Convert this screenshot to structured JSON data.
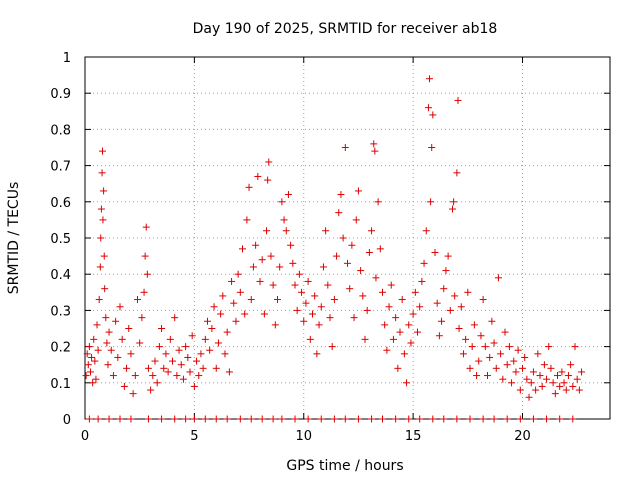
{
  "chart_data": {
    "type": "scatter",
    "title": "Day 190 of 2025, SRMTID for receiver ab18",
    "xlabel": "GPS time / hours",
    "ylabel": "SRMTID / TECUs",
    "xlim": [
      0,
      24
    ],
    "ylim": [
      0,
      1
    ],
    "xticks": [
      0,
      5,
      10,
      15,
      20
    ],
    "xtick_labels": [
      "0",
      "5",
      "10",
      "15",
      "20"
    ],
    "yticks": [
      0,
      0.1,
      0.2,
      0.3,
      0.4,
      0.5,
      0.6,
      0.7,
      0.8,
      0.9,
      1
    ],
    "ytick_labels": [
      "0",
      "0.1",
      "0.2",
      "0.3",
      "0.4",
      "0.5",
      "0.6",
      "0.7",
      "0.8",
      "0.9",
      "1"
    ],
    "grid": true,
    "marker": "+",
    "color": "#dd0000",
    "series": [
      {
        "name": "SRMTID",
        "points": [
          [
            0.05,
            0.12
          ],
          [
            0.1,
            0.18
          ],
          [
            0.15,
            0.15
          ],
          [
            0.2,
            0.2
          ],
          [
            0.25,
            0.13
          ],
          [
            0.3,
            0.17
          ],
          [
            0.35,
            0.1
          ],
          [
            0.4,
            0.22
          ],
          [
            0.45,
            0.16
          ],
          [
            0.5,
            0.11
          ],
          [
            0.55,
            0.26
          ],
          [
            0.6,
            0.19
          ],
          [
            0.65,
            0.33
          ],
          [
            0.7,
            0.42
          ],
          [
            0.72,
            0.5
          ],
          [
            0.75,
            0.58
          ],
          [
            0.78,
            0.68
          ],
          [
            0.8,
            0.74
          ],
          [
            0.82,
            0.55
          ],
          [
            0.85,
            0.63
          ],
          [
            0.88,
            0.45
          ],
          [
            0.9,
            0.36
          ],
          [
            0.95,
            0.28
          ],
          [
            1.0,
            0.21
          ],
          [
            1.05,
            0.15
          ],
          [
            1.1,
            0.24
          ],
          [
            1.2,
            0.19
          ],
          [
            1.3,
            0.12
          ],
          [
            1.4,
            0.27
          ],
          [
            1.5,
            0.17
          ],
          [
            1.6,
            0.31
          ],
          [
            1.7,
            0.22
          ],
          [
            1.8,
            0.09
          ],
          [
            1.9,
            0.14
          ],
          [
            2.0,
            0.25
          ],
          [
            2.1,
            0.18
          ],
          [
            2.2,
            0.07
          ],
          [
            2.3,
            0.12
          ],
          [
            2.4,
            0.33
          ],
          [
            2.5,
            0.21
          ],
          [
            2.6,
            0.28
          ],
          [
            2.7,
            0.35
          ],
          [
            2.75,
            0.45
          ],
          [
            2.8,
            0.53
          ],
          [
            2.85,
            0.4
          ],
          [
            2.9,
            0.14
          ],
          [
            3.0,
            0.08
          ],
          [
            3.1,
            0.12
          ],
          [
            3.2,
            0.16
          ],
          [
            3.3,
            0.1
          ],
          [
            3.4,
            0.2
          ],
          [
            3.5,
            0.25
          ],
          [
            3.6,
            0.14
          ],
          [
            3.7,
            0.18
          ],
          [
            3.8,
            0.13
          ],
          [
            3.9,
            0.22
          ],
          [
            4.0,
            0.16
          ],
          [
            4.1,
            0.28
          ],
          [
            4.2,
            0.12
          ],
          [
            4.3,
            0.19
          ],
          [
            4.4,
            0.15
          ],
          [
            4.5,
            0.11
          ],
          [
            4.6,
            0.2
          ],
          [
            4.7,
            0.17
          ],
          [
            4.8,
            0.13
          ],
          [
            4.9,
            0.23
          ],
          [
            5.0,
            0.09
          ],
          [
            5.1,
            0.16
          ],
          [
            5.2,
            0.12
          ],
          [
            5.3,
            0.18
          ],
          [
            5.4,
            0.14
          ],
          [
            5.5,
            0.22
          ],
          [
            5.6,
            0.27
          ],
          [
            5.7,
            0.19
          ],
          [
            5.8,
            0.25
          ],
          [
            5.9,
            0.31
          ],
          [
            6.0,
            0.14
          ],
          [
            6.1,
            0.21
          ],
          [
            6.2,
            0.29
          ],
          [
            6.3,
            0.34
          ],
          [
            6.4,
            0.18
          ],
          [
            6.5,
            0.24
          ],
          [
            6.6,
            0.13
          ],
          [
            6.7,
            0.38
          ],
          [
            6.8,
            0.32
          ],
          [
            6.9,
            0.27
          ],
          [
            7.0,
            0.4
          ],
          [
            7.1,
            0.35
          ],
          [
            7.2,
            0.47
          ],
          [
            7.3,
            0.29
          ],
          [
            7.4,
            0.55
          ],
          [
            7.5,
            0.64
          ],
          [
            7.6,
            0.33
          ],
          [
            7.7,
            0.42
          ],
          [
            7.8,
            0.48
          ],
          [
            7.9,
            0.67
          ],
          [
            8.0,
            0.38
          ],
          [
            8.1,
            0.44
          ],
          [
            8.2,
            0.29
          ],
          [
            8.3,
            0.52
          ],
          [
            8.35,
            0.66
          ],
          [
            8.4,
            0.71
          ],
          [
            8.5,
            0.45
          ],
          [
            8.6,
            0.37
          ],
          [
            8.7,
            0.26
          ],
          [
            8.8,
            0.33
          ],
          [
            8.9,
            0.42
          ],
          [
            9.0,
            0.6
          ],
          [
            9.1,
            0.55
          ],
          [
            9.2,
            0.52
          ],
          [
            9.3,
            0.62
          ],
          [
            9.4,
            0.48
          ],
          [
            9.5,
            0.43
          ],
          [
            9.6,
            0.37
          ],
          [
            9.7,
            0.3
          ],
          [
            9.8,
            0.4
          ],
          [
            9.9,
            0.35
          ],
          [
            10.0,
            0.27
          ],
          [
            10.1,
            0.32
          ],
          [
            10.2,
            0.38
          ],
          [
            10.3,
            0.22
          ],
          [
            10.4,
            0.29
          ],
          [
            10.5,
            0.34
          ],
          [
            10.6,
            0.18
          ],
          [
            10.7,
            0.26
          ],
          [
            10.8,
            0.31
          ],
          [
            10.9,
            0.42
          ],
          [
            11.0,
            0.52
          ],
          [
            11.1,
            0.37
          ],
          [
            11.2,
            0.28
          ],
          [
            11.3,
            0.2
          ],
          [
            11.4,
            0.33
          ],
          [
            11.5,
            0.45
          ],
          [
            11.6,
            0.57
          ],
          [
            11.7,
            0.62
          ],
          [
            11.8,
            0.5
          ],
          [
            11.9,
            0.75
          ],
          [
            12.0,
            0.43
          ],
          [
            12.1,
            0.36
          ],
          [
            12.2,
            0.48
          ],
          [
            12.3,
            0.28
          ],
          [
            12.4,
            0.55
          ],
          [
            12.5,
            0.63
          ],
          [
            12.6,
            0.41
          ],
          [
            12.7,
            0.34
          ],
          [
            12.8,
            0.22
          ],
          [
            12.9,
            0.3
          ],
          [
            13.0,
            0.46
          ],
          [
            13.1,
            0.52
          ],
          [
            13.2,
            0.76
          ],
          [
            13.25,
            0.74
          ],
          [
            13.3,
            0.39
          ],
          [
            13.4,
            0.6
          ],
          [
            13.5,
            0.47
          ],
          [
            13.6,
            0.35
          ],
          [
            13.7,
            0.26
          ],
          [
            13.8,
            0.19
          ],
          [
            13.9,
            0.31
          ],
          [
            14.0,
            0.37
          ],
          [
            14.1,
            0.22
          ],
          [
            14.2,
            0.28
          ],
          [
            14.3,
            0.14
          ],
          [
            14.4,
            0.24
          ],
          [
            14.5,
            0.33
          ],
          [
            14.6,
            0.18
          ],
          [
            14.7,
            0.1
          ],
          [
            14.8,
            0.26
          ],
          [
            14.9,
            0.21
          ],
          [
            15.0,
            0.29
          ],
          [
            15.1,
            0.35
          ],
          [
            15.2,
            0.24
          ],
          [
            15.3,
            0.31
          ],
          [
            15.4,
            0.38
          ],
          [
            15.5,
            0.43
          ],
          [
            15.6,
            0.52
          ],
          [
            15.7,
            0.86
          ],
          [
            15.75,
            0.94
          ],
          [
            15.8,
            0.6
          ],
          [
            15.85,
            0.75
          ],
          [
            15.9,
            0.84
          ],
          [
            16.0,
            0.46
          ],
          [
            16.1,
            0.32
          ],
          [
            16.2,
            0.23
          ],
          [
            16.3,
            0.27
          ],
          [
            16.4,
            0.36
          ],
          [
            16.5,
            0.41
          ],
          [
            16.6,
            0.45
          ],
          [
            16.7,
            0.3
          ],
          [
            16.8,
            0.58
          ],
          [
            16.85,
            0.6
          ],
          [
            16.9,
            0.34
          ],
          [
            17.0,
            0.68
          ],
          [
            17.05,
            0.88
          ],
          [
            17.1,
            0.25
          ],
          [
            17.2,
            0.31
          ],
          [
            17.3,
            0.18
          ],
          [
            17.4,
            0.22
          ],
          [
            17.5,
            0.35
          ],
          [
            17.6,
            0.14
          ],
          [
            17.7,
            0.2
          ],
          [
            17.8,
            0.26
          ],
          [
            17.9,
            0.12
          ],
          [
            18.0,
            0.16
          ],
          [
            18.1,
            0.23
          ],
          [
            18.2,
            0.33
          ],
          [
            18.3,
            0.2
          ],
          [
            18.4,
            0.12
          ],
          [
            18.5,
            0.17
          ],
          [
            18.6,
            0.27
          ],
          [
            18.7,
            0.21
          ],
          [
            18.8,
            0.14
          ],
          [
            18.9,
            0.39
          ],
          [
            19.0,
            0.18
          ],
          [
            19.1,
            0.11
          ],
          [
            19.2,
            0.24
          ],
          [
            19.3,
            0.15
          ],
          [
            19.4,
            0.2
          ],
          [
            19.5,
            0.1
          ],
          [
            19.6,
            0.16
          ],
          [
            19.7,
            0.13
          ],
          [
            19.8,
            0.19
          ],
          [
            19.9,
            0.08
          ],
          [
            20.0,
            0.14
          ],
          [
            20.1,
            0.17
          ],
          [
            20.2,
            0.11
          ],
          [
            20.3,
            0.06
          ],
          [
            20.4,
            0.1
          ],
          [
            20.5,
            0.13
          ],
          [
            20.6,
            0.08
          ],
          [
            20.7,
            0.18
          ],
          [
            20.8,
            0.12
          ],
          [
            20.9,
            0.09
          ],
          [
            21.0,
            0.15
          ],
          [
            21.1,
            0.11
          ],
          [
            21.2,
            0.2
          ],
          [
            21.3,
            0.14
          ],
          [
            21.4,
            0.1
          ],
          [
            21.5,
            0.07
          ],
          [
            21.6,
            0.12
          ],
          [
            21.7,
            0.09
          ],
          [
            21.8,
            0.13
          ],
          [
            21.9,
            0.1
          ],
          [
            22.0,
            0.08
          ],
          [
            22.1,
            0.12
          ],
          [
            22.2,
            0.15
          ],
          [
            22.3,
            0.09
          ],
          [
            22.4,
            0.2
          ],
          [
            22.5,
            0.11
          ],
          [
            22.6,
            0.08
          ],
          [
            22.7,
            0.13
          ]
        ],
        "zero_points_x": [
          0.2,
          0.6,
          1.1,
          1.6,
          2.1,
          2.9,
          3.5,
          4.1,
          4.6,
          5.0,
          5.5,
          6.0,
          6.5,
          7.1,
          7.6,
          8.1,
          8.6,
          9.0,
          9.6,
          10.2,
          10.8,
          11.4,
          11.9,
          12.5,
          13.1,
          13.6,
          14.2,
          14.8,
          15.3,
          15.9,
          16.4,
          17.0,
          17.6,
          18.2,
          18.7,
          19.3,
          19.9,
          20.5,
          21.1,
          21.7,
          22.3
        ]
      }
    ]
  }
}
